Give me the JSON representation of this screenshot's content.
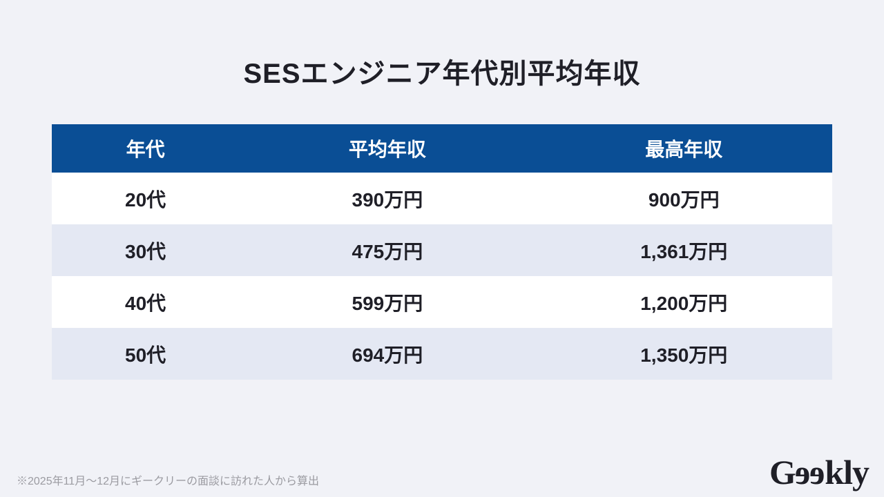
{
  "page": {
    "title": "SESエンジニア年代別平均年収",
    "footnote": "※2025年11月〜12月にギークリーの面談に訪れた人から算出"
  },
  "table": {
    "columns": [
      "年代",
      "平均年収",
      "最高年収"
    ],
    "rows": [
      [
        "20代",
        "390万円",
        "900万円"
      ],
      [
        "30代",
        "475万円",
        "1,361万円"
      ],
      [
        "40代",
        "599万円",
        "1,200万円"
      ],
      [
        "50代",
        "694万円",
        "1,350万円"
      ]
    ]
  },
  "chart_data": {
    "type": "table",
    "title": "SESエンジニア年代別平均年収",
    "columns": [
      "年代",
      "平均年収",
      "最高年収"
    ],
    "categories": [
      "20代",
      "30代",
      "40代",
      "50代"
    ],
    "series": [
      {
        "name": "平均年収(万円)",
        "values": [
          390,
          475,
          599,
          694
        ]
      },
      {
        "name": "最高年収(万円)",
        "values": [
          900,
          1361,
          1200,
          1350
        ]
      }
    ],
    "note": "※2025年11月〜12月にギークリーの面談に訪れた人から算出"
  },
  "logo": {
    "prefix": "G",
    "flipped_letters": "ee",
    "suffix": "kly"
  },
  "colors": {
    "page_bg": "#f1f2f7",
    "header_bg": "#0a4e95",
    "row_bg": "#ffffff",
    "row_alt_bg": "#e4e8f3",
    "text": "#1f1f27",
    "footnote": "#9b9ba1"
  }
}
